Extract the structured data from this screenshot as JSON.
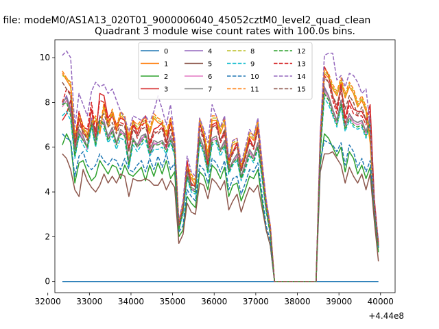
{
  "figure": {
    "suptitle": "n file: modeM0/AS1A13_020T01_9000006040_45052cztM0_level2_quad_clean",
    "title": "Quadrant 3 module wise count rates with 100.0s bins.",
    "offset_label": "+4.44e8"
  },
  "chart_data": {
    "type": "line",
    "title": "Quadrant 3 module wise count rates with 100.0s bins.",
    "xlabel": "",
    "ylabel": "",
    "x_offset": 444000000,
    "xlim": [
      32170,
      40350
    ],
    "ylim": [
      -0.5,
      10.8
    ],
    "xticks": [
      32000,
      33000,
      34000,
      35000,
      36000,
      37000,
      38000,
      39000,
      40000
    ],
    "yticks": [
      0,
      2,
      4,
      6,
      8,
      10
    ],
    "grid": false,
    "legend": {
      "placement": "upper-center",
      "columns": 4
    },
    "x": [
      32350,
      32450,
      32550,
      32650,
      32750,
      32850,
      32950,
      33050,
      33150,
      33250,
      33350,
      33450,
      33550,
      33650,
      33750,
      33850,
      33950,
      34050,
      34150,
      34250,
      34350,
      34450,
      34550,
      34650,
      34750,
      34850,
      34950,
      35050,
      35150,
      35250,
      35350,
      35450,
      35550,
      35650,
      35750,
      35850,
      35950,
      36050,
      36150,
      36250,
      36350,
      36450,
      36550,
      36650,
      36750,
      36850,
      36950,
      37050,
      37150,
      37250,
      37350,
      37450,
      38450,
      38550,
      38650,
      38750,
      38850,
      38950,
      39050,
      39150,
      39250,
      39350,
      39450,
      39550,
      39650,
      39750,
      39850,
      39950
    ],
    "series": [
      {
        "name": "0",
        "color": "#1f77b4",
        "dash": false,
        "values": [
          0,
          0,
          0,
          0,
          0,
          0,
          0,
          0,
          0,
          0,
          0,
          0,
          0,
          0,
          0,
          0,
          0,
          0,
          0,
          0,
          0,
          0,
          0,
          0,
          0,
          0,
          0,
          0,
          0,
          0,
          0,
          0,
          0,
          0,
          0,
          0,
          0,
          0,
          0,
          0,
          0,
          0,
          0,
          0,
          0,
          0,
          0,
          0,
          0,
          0,
          0,
          0,
          0,
          0,
          0,
          0,
          0,
          0,
          0,
          0,
          0,
          0,
          0,
          0,
          0,
          0,
          0,
          0
        ]
      },
      {
        "name": "1",
        "color": "#ff7f0e",
        "dash": false,
        "values": [
          9.3,
          9,
          8.7,
          6.3,
          7.3,
          6.8,
          6.4,
          6.9,
          7.2,
          6.6,
          7.8,
          6.9,
          7.5,
          6.7,
          7.4,
          7.2,
          6.3,
          7,
          6.8,
          7,
          7.1,
          6.6,
          7.3,
          7.1,
          7,
          6.5,
          7.1,
          6.1,
          2.4,
          3.3,
          5,
          4.6,
          4.3,
          7.1,
          6.5,
          5.6,
          7.2,
          7.2,
          6.6,
          7.1,
          5.2,
          6.1,
          6.2,
          5,
          5.8,
          6.5,
          6.3,
          7,
          5.1,
          3.4,
          2.3,
          0,
          0,
          5.8,
          9.3,
          9.1,
          8.6,
          8.3,
          8.9,
          8.2,
          8.7,
          8.4,
          7.8,
          8.1,
          7.6,
          6.2,
          3.2,
          1.6
        ]
      },
      {
        "name": "2",
        "color": "#2ca02c",
        "dash": false,
        "values": [
          6.1,
          6.6,
          6.2,
          4.4,
          5.3,
          5.4,
          4.9,
          4.5,
          4.7,
          5.4,
          5.1,
          4.8,
          5.2,
          5.1,
          4.6,
          5.2,
          4.8,
          4.7,
          4.9,
          5.1,
          4.5,
          5.2,
          4.7,
          5.3,
          4.8,
          5.4,
          4.6,
          4.9,
          2,
          2.3,
          3.8,
          3.5,
          3.3,
          4.9,
          4.7,
          4.1,
          5.2,
          5,
          4.6,
          5.1,
          3.8,
          4.3,
          4.4,
          3.6,
          4.1,
          4.7,
          4.6,
          5,
          3.6,
          2.3,
          1.6,
          0,
          0,
          5.2,
          6.6,
          6.4,
          6,
          5.6,
          6,
          4.9,
          5.8,
          5.5,
          4.8,
          5.2,
          4.6,
          5.1,
          3.1,
          1.3
        ]
      },
      {
        "name": "3",
        "color": "#d62728",
        "dash": false,
        "values": [
          7.2,
          7.5,
          8.1,
          5.9,
          7.3,
          6.6,
          6.5,
          7.7,
          6.4,
          8.4,
          8.3,
          7.3,
          7.6,
          7,
          7.3,
          7.2,
          5.9,
          7.2,
          6.6,
          7.1,
          7.4,
          6.1,
          6.8,
          6.9,
          7.1,
          6.2,
          7.3,
          6.3,
          2.5,
          3.3,
          5.4,
          4.3,
          4.3,
          7.1,
          6.5,
          5.2,
          7,
          7.1,
          6.3,
          6.7,
          5.5,
          5.8,
          6.2,
          5.1,
          5.6,
          6.4,
          6,
          6.9,
          5.2,
          3.6,
          2.5,
          0,
          0,
          6.6,
          9.6,
          9.2,
          8.3,
          7.7,
          8.8,
          7.3,
          8.1,
          7.7,
          7.6,
          7.6,
          7.2,
          7.9,
          3.7,
          1.7
        ]
      },
      {
        "name": "4",
        "color": "#9467bd",
        "dash": false,
        "values": [
          7.9,
          8.3,
          7.7,
          5.6,
          6.6,
          6.3,
          6,
          7.3,
          6.2,
          7.4,
          7.2,
          6.4,
          6.7,
          6.2,
          6.6,
          6.6,
          5.1,
          6.4,
          6,
          6.3,
          6.6,
          5.6,
          6.1,
          6.2,
          6.3,
          5.9,
          6.5,
          5.8,
          2.3,
          3.1,
          4.7,
          4.1,
          4,
          6.4,
          5.9,
          4.9,
          6.3,
          6.4,
          5.9,
          6.2,
          4.9,
          5.3,
          5.6,
          4.6,
          5.2,
          5.8,
          5.5,
          6.2,
          4.7,
          3.2,
          2.1,
          0,
          0,
          5.9,
          8.7,
          8.3,
          7.7,
          7.2,
          8.1,
          7,
          7.5,
          7.2,
          7.1,
          7.2,
          6.6,
          7.4,
          3.4,
          1.5
        ]
      },
      {
        "name": "5",
        "color": "#8c564b",
        "dash": false,
        "values": [
          5.7,
          5.5,
          5,
          4.1,
          3.8,
          5,
          4.5,
          4.2,
          4,
          4.3,
          4.8,
          4.4,
          4.7,
          4.4,
          4.8,
          4.7,
          3.8,
          4.6,
          4.5,
          4.5,
          4.6,
          4.5,
          4.3,
          4.3,
          4.6,
          4.1,
          4.5,
          4.2,
          1.7,
          2.1,
          3.5,
          3.1,
          3,
          4.4,
          4.3,
          3.7,
          4.6,
          4.4,
          4.1,
          4.5,
          3.2,
          3.6,
          3.9,
          3.1,
          3.7,
          4.2,
          4,
          4.3,
          3.3,
          2.3,
          1.6,
          0,
          0,
          4.9,
          5.7,
          5.7,
          5.8,
          5.5,
          5.2,
          4.4,
          5.1,
          4.7,
          4.4,
          4.8,
          4.1,
          4.8,
          2.7,
          0.9
        ]
      },
      {
        "name": "6",
        "color": "#e377c2",
        "dash": false,
        "values": [
          7.8,
          8.1,
          7.5,
          5.7,
          6.7,
          6.4,
          5.9,
          7.1,
          6.2,
          7.1,
          7,
          6.4,
          6.8,
          6.1,
          6.7,
          6.5,
          5.3,
          6.3,
          6,
          6.4,
          6.5,
          5.8,
          6.2,
          6.1,
          6.2,
          5.9,
          6.4,
          5.8,
          2.4,
          3.1,
          4.8,
          4.1,
          4.1,
          6.4,
          5.9,
          5,
          6.3,
          6.4,
          5.8,
          6.2,
          4.9,
          5.3,
          5.6,
          4.6,
          5.2,
          5.8,
          5.5,
          6.1,
          4.7,
          3.2,
          2.2,
          0,
          0,
          5.9,
          8.5,
          8.2,
          7.6,
          7.1,
          8,
          6.9,
          7.4,
          7.1,
          7,
          7.1,
          6.6,
          7.2,
          3.4,
          1.6
        ]
      },
      {
        "name": "7",
        "color": "#7f7f7f",
        "dash": false,
        "values": [
          8,
          8.2,
          7.6,
          5.8,
          6.8,
          6.5,
          6,
          7.2,
          6.3,
          7.2,
          7.1,
          6.5,
          6.9,
          6.2,
          6.8,
          6.6,
          5.4,
          6.4,
          6.1,
          6.5,
          6.6,
          5.9,
          6.3,
          6.2,
          6.3,
          6,
          6.5,
          5.9,
          2.4,
          3.2,
          4.9,
          4.2,
          4.1,
          6.5,
          6,
          5.1,
          6.4,
          6.5,
          5.9,
          6.3,
          5,
          5.4,
          5.7,
          4.7,
          5.3,
          5.9,
          5.6,
          6.2,
          4.8,
          3.3,
          2.2,
          0,
          0,
          6,
          8.6,
          8.3,
          7.7,
          7.2,
          8.1,
          7,
          7.5,
          7.2,
          7.1,
          7.2,
          6.7,
          7.3,
          3.5,
          1.6
        ]
      },
      {
        "name": "8",
        "color": "#bcbd22",
        "dash": true,
        "values": [
          9.2,
          9.1,
          8.8,
          6.4,
          7.4,
          6.9,
          6.5,
          7,
          7.3,
          6.7,
          7.9,
          7,
          7.6,
          6.8,
          7.5,
          7.3,
          6.4,
          7.1,
          6.9,
          7.1,
          7.2,
          6.7,
          7.4,
          7.2,
          7.1,
          6.6,
          7.2,
          6.2,
          2.5,
          3.4,
          5.1,
          4.7,
          4.4,
          7.2,
          6.6,
          5.7,
          7.3,
          7.3,
          6.7,
          7.2,
          5.3,
          6.2,
          6.3,
          5.1,
          5.9,
          6.6,
          6.4,
          7.1,
          5.2,
          3.5,
          2.4,
          0,
          0,
          5.9,
          9.4,
          9.2,
          8.7,
          8.4,
          9,
          8.3,
          8.8,
          8.5,
          7.9,
          8.2,
          7.7,
          6.3,
          3.3,
          1.7
        ]
      },
      {
        "name": "9",
        "color": "#17becf",
        "dash": true,
        "values": [
          7.4,
          7.6,
          7.2,
          5.5,
          6.5,
          6.1,
          5.8,
          6.9,
          6,
          7,
          6.8,
          6.2,
          6.5,
          5.9,
          6.4,
          6.3,
          5.1,
          6.1,
          5.8,
          6.1,
          6.3,
          5.6,
          5.9,
          5.9,
          6,
          5.7,
          6.2,
          5.6,
          2.3,
          3,
          4.6,
          4,
          3.9,
          6.2,
          5.7,
          4.8,
          6.1,
          6.2,
          5.6,
          6,
          4.8,
          5.2,
          5.4,
          4.5,
          5,
          5.6,
          5.3,
          5.9,
          4.6,
          3.1,
          2.1,
          0,
          0,
          5.7,
          8.2,
          7.9,
          7.4,
          6.9,
          7.8,
          6.7,
          7.2,
          6.9,
          6.8,
          6.9,
          6.4,
          7,
          3.3,
          1.5
        ]
      },
      {
        "name": "10",
        "color": "#1f77b4",
        "dash": true,
        "values": [
          6.6,
          6.4,
          6.3,
          4.7,
          5.6,
          5.8,
          5.2,
          5,
          5.2,
          5.7,
          5.4,
          5.2,
          5.5,
          5.4,
          5,
          5.5,
          5,
          4.9,
          5.2,
          5.4,
          4.9,
          5.5,
          5,
          5.6,
          5.1,
          5.7,
          5,
          5.3,
          2.2,
          2.5,
          4.1,
          3.8,
          3.6,
          5.2,
          5,
          4.4,
          5.5,
          5.3,
          4.9,
          5.4,
          4.1,
          4.6,
          4.7,
          3.9,
          4.4,
          5,
          4.9,
          5.3,
          3.9,
          2.5,
          1.8,
          0,
          0,
          5.4,
          6.3,
          6.2,
          6.1,
          5.8,
          6.2,
          5.2,
          6.1,
          5.8,
          5.1,
          5.5,
          4.9,
          5.4,
          3.3,
          1.5
        ]
      },
      {
        "name": "11",
        "color": "#ff7f0e",
        "dash": true,
        "values": [
          9.4,
          9.1,
          8.9,
          6.5,
          7.5,
          7,
          6.6,
          7.1,
          7.4,
          6.8,
          8,
          7.1,
          7.7,
          6.9,
          7.6,
          7.4,
          6.5,
          7.2,
          7,
          7.2,
          7.3,
          6.8,
          7.5,
          7.3,
          7.2,
          6.7,
          7.3,
          6.3,
          2.6,
          3.5,
          5.2,
          4.8,
          4.5,
          7.3,
          6.7,
          5.8,
          7.4,
          7.4,
          6.8,
          7.3,
          5.4,
          6.3,
          6.4,
          5.2,
          6,
          6.7,
          6.5,
          7.2,
          5.3,
          3.6,
          2.5,
          0,
          0,
          6,
          9.5,
          9.3,
          8.8,
          8.5,
          9.1,
          8.4,
          8.9,
          8.6,
          8,
          8.3,
          7.8,
          6.4,
          3.4,
          1.8
        ]
      },
      {
        "name": "12",
        "color": "#2ca02c",
        "dash": true,
        "values": [
          7.9,
          8,
          7.4,
          5.6,
          6.6,
          6.3,
          6,
          7,
          6.1,
          7.2,
          7,
          6.3,
          6.7,
          6.1,
          6.6,
          6.5,
          5.2,
          6.3,
          6,
          6.2,
          6.5,
          5.7,
          6.1,
          6.1,
          6.2,
          5.8,
          6.3,
          5.7,
          2.3,
          3.1,
          4.7,
          4.1,
          4,
          6.3,
          5.8,
          4.9,
          6.2,
          6.3,
          5.8,
          6.1,
          4.9,
          5.3,
          5.5,
          4.6,
          5.1,
          5.7,
          5.4,
          6,
          4.7,
          3.2,
          2.1,
          0,
          0,
          5.8,
          8.4,
          8.1,
          7.5,
          7,
          7.9,
          6.8,
          7.3,
          7,
          6.9,
          7,
          6.5,
          7.1,
          3.4,
          1.5
        ]
      },
      {
        "name": "13",
        "color": "#d62728",
        "dash": true,
        "values": [
          8,
          8.6,
          8.4,
          6.2,
          7.6,
          6.9,
          6.8,
          8,
          6.7,
          8.1,
          8,
          7.1,
          7.4,
          6.8,
          7.1,
          7,
          5.8,
          7,
          6.4,
          6.9,
          7.2,
          6,
          6.6,
          6.7,
          6.9,
          6,
          7.1,
          6.2,
          2.5,
          3.3,
          5.3,
          4.3,
          4.3,
          7,
          6.4,
          5.2,
          6.9,
          7,
          6.2,
          6.6,
          5.4,
          5.7,
          6.1,
          5,
          5.5,
          6.3,
          5.9,
          6.8,
          5.1,
          3.5,
          2.4,
          0,
          0,
          6.4,
          9.2,
          8.9,
          8.1,
          7.5,
          8.6,
          7.1,
          7.9,
          7.5,
          7.4,
          7.4,
          7,
          7.7,
          3.6,
          1.7
        ]
      },
      {
        "name": "14",
        "color": "#9467bd",
        "dash": true,
        "values": [
          10.1,
          10.3,
          10,
          6.9,
          8.4,
          7.9,
          7.4,
          8.5,
          8.9,
          8.7,
          8.8,
          8.4,
          8.6,
          8.1,
          7.6,
          7.3,
          6.7,
          7.4,
          7.3,
          7.2,
          7.4,
          7.1,
          7.6,
          8.3,
          7.7,
          7,
          7.9,
          6.4,
          2.7,
          3.6,
          5.6,
          4.9,
          4.7,
          7.3,
          6.8,
          6.2,
          7.9,
          7.4,
          6.9,
          7.4,
          5.5,
          6.3,
          6.4,
          5.3,
          6,
          6.8,
          6.5,
          7.3,
          5.4,
          3.7,
          2.5,
          0,
          0,
          6.6,
          10.1,
          10.2,
          10.2,
          9,
          9.2,
          8.7,
          9.3,
          9.2,
          8.9,
          8.4,
          8.6,
          7,
          3.5,
          1.8
        ]
      },
      {
        "name": "15",
        "color": "#8c564b",
        "dash": true,
        "values": [
          8.9,
          8.6,
          8.3,
          6.2,
          7,
          6.7,
          6.3,
          7.1,
          6.8,
          7.3,
          7.5,
          6.9,
          7.1,
          6.6,
          7,
          6.9,
          5.8,
          6.8,
          6.5,
          6.8,
          6.9,
          6.3,
          6.7,
          6.6,
          6.8,
          6.2,
          6.8,
          6,
          2.5,
          3.2,
          5,
          4.4,
          4.2,
          6.8,
          6.3,
          5.4,
          6.9,
          6.9,
          6.3,
          6.8,
          5.1,
          5.8,
          6,
          4.9,
          5.6,
          6.2,
          6,
          6.7,
          5,
          3.4,
          2.3,
          0,
          0,
          6.1,
          9.1,
          8.9,
          8.3,
          7.9,
          8.6,
          7.7,
          8.3,
          8,
          7.4,
          7.8,
          7.2,
          6.7,
          3.4,
          1.6
        ]
      }
    ]
  }
}
